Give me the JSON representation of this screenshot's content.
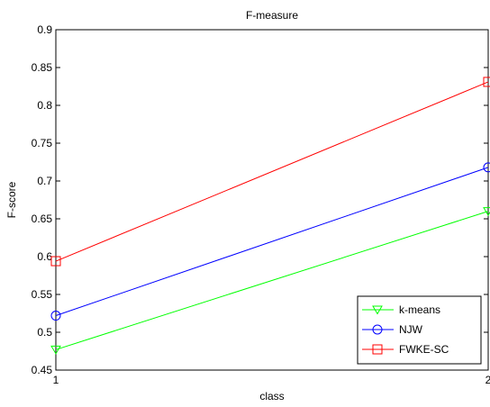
{
  "chart_data": {
    "type": "line",
    "title": "F-measure",
    "xlabel": "class",
    "ylabel": "F-score",
    "x": [
      1,
      2
    ],
    "xlim": [
      1,
      2
    ],
    "ylim": [
      0.45,
      0.9
    ],
    "xticks": [
      "1",
      "2"
    ],
    "yticks": [
      "0.45",
      "0.5",
      "0.55",
      "0.6",
      "0.65",
      "0.7",
      "0.75",
      "0.8",
      "0.85",
      "0.9"
    ],
    "grid": false,
    "legend_position": "bottom-right",
    "series": [
      {
        "name": "k-means",
        "values": [
          0.477,
          0.66
        ],
        "color": "#00ff00",
        "marker": "triangle-down"
      },
      {
        "name": "NJW",
        "values": [
          0.522,
          0.718
        ],
        "color": "#0000ff",
        "marker": "circle"
      },
      {
        "name": "FWKE-SC",
        "values": [
          0.594,
          0.831
        ],
        "color": "#ff0000",
        "marker": "square"
      }
    ]
  }
}
